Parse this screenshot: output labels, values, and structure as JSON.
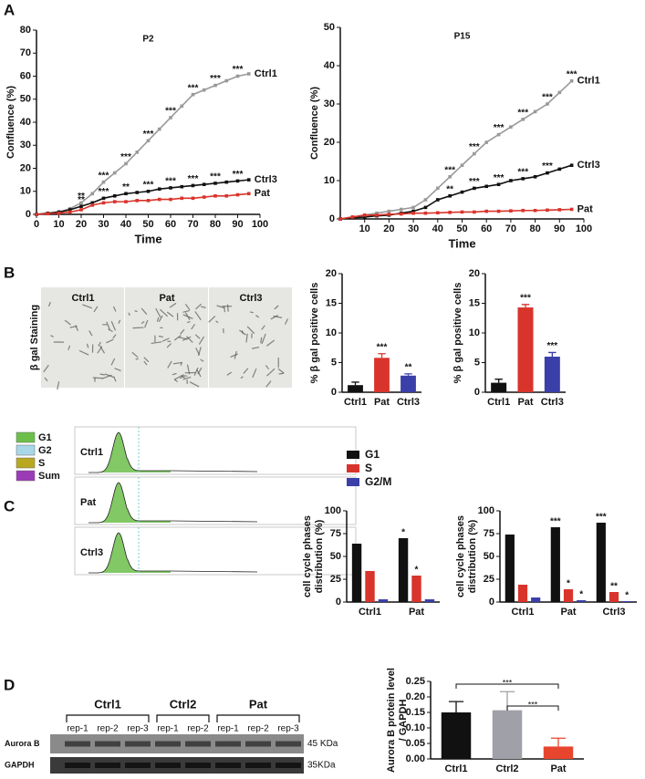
{
  "panels": [
    "A",
    "B",
    "C",
    "D"
  ],
  "staining": {
    "side_label": "β gal Staining",
    "labels": [
      "Ctrl1",
      "Pat",
      "Ctrl3"
    ]
  },
  "flow": {
    "legend": [
      {
        "label": "G1",
        "color": "#6cc04a"
      },
      {
        "label": "G2",
        "color": "#a8d8e8"
      },
      {
        "label": "S",
        "color": "#b8a820"
      },
      {
        "label": "Sum",
        "color": "#9b3bb5"
      }
    ],
    "samples": [
      "Ctrl1",
      "Pat",
      "Ctrl3"
    ]
  },
  "blot": {
    "groups": [
      {
        "name": "Ctrl1",
        "lanes": [
          "rep-1",
          "rep-2",
          "rep-3"
        ]
      },
      {
        "name": "Ctrl2",
        "lanes": [
          "rep-1",
          "rep-2"
        ]
      },
      {
        "name": "Pat",
        "lanes": [
          "rep-1",
          "rep-2",
          "rep-3"
        ]
      }
    ],
    "rows": [
      "Aurora B",
      "GAPDH"
    ],
    "sizes": [
      "45 KDa",
      "35KDa"
    ]
  },
  "chart_data": [
    {
      "type": "line",
      "title": "P2",
      "xlabel": "Time",
      "ylabel": "Confluence (%)",
      "xlim": [
        0,
        100
      ],
      "ylim": [
        0,
        80
      ],
      "xticks": [
        0,
        10,
        20,
        30,
        40,
        50,
        60,
        70,
        80,
        90,
        100
      ],
      "yticks": [
        0,
        10,
        20,
        30,
        40,
        50,
        60,
        70,
        80
      ],
      "x": [
        0,
        5,
        10,
        15,
        20,
        25,
        30,
        35,
        40,
        45,
        50,
        55,
        60,
        65,
        70,
        75,
        80,
        85,
        90,
        95
      ],
      "series": [
        {
          "name": "Ctrl1",
          "color": "#999999",
          "values": [
            0,
            0.5,
            1,
            2.5,
            5,
            9,
            14,
            18,
            22,
            27,
            32,
            37,
            42,
            47,
            52,
            54,
            56,
            58,
            60,
            61
          ],
          "significance": [
            null,
            null,
            null,
            null,
            "**",
            null,
            "***",
            null,
            "***",
            null,
            "***",
            null,
            "***",
            null,
            "***",
            null,
            "***",
            null,
            "***",
            null
          ]
        },
        {
          "name": "Ctrl3",
          "color": "#111111",
          "values": [
            0,
            0.5,
            1,
            2,
            3.5,
            5,
            7,
            8,
            9,
            9.5,
            10,
            11,
            11.5,
            12,
            12.5,
            13,
            13.5,
            14,
            14.5,
            15
          ],
          "significance": [
            null,
            null,
            null,
            null,
            "**",
            null,
            "***",
            null,
            "**",
            null,
            "***",
            null,
            "***",
            null,
            "***",
            null,
            "***",
            null,
            "***",
            null
          ]
        },
        {
          "name": "Pat",
          "color": "#d9342b",
          "values": [
            0,
            0.3,
            0.5,
            1,
            2,
            4,
            5,
            5.5,
            5.5,
            6,
            6,
            6.5,
            6.5,
            7,
            7,
            7.5,
            8,
            8,
            8.5,
            9
          ]
        }
      ]
    },
    {
      "type": "line",
      "title": "P15",
      "xlabel": "Time",
      "ylabel": "Confluence (%)",
      "xlim": [
        0,
        100
      ],
      "ylim": [
        0,
        50
      ],
      "xticks": [
        10,
        20,
        30,
        40,
        50,
        60,
        70,
        80,
        90,
        100
      ],
      "yticks": [
        0,
        10,
        20,
        30,
        40,
        50
      ],
      "x": [
        0,
        5,
        10,
        15,
        20,
        25,
        30,
        35,
        40,
        45,
        50,
        55,
        60,
        65,
        70,
        75,
        80,
        85,
        90,
        95
      ],
      "series": [
        {
          "name": "Ctrl1",
          "color": "#999999",
          "values": [
            0,
            0.5,
            1,
            1.5,
            2,
            2.5,
            3,
            5,
            8,
            11,
            14,
            17,
            20,
            22,
            24,
            26,
            28,
            30,
            33,
            36
          ],
          "significance": [
            null,
            null,
            null,
            null,
            null,
            null,
            null,
            null,
            null,
            "***",
            null,
            "***",
            null,
            "***",
            null,
            "***",
            null,
            "***",
            null,
            "***"
          ]
        },
        {
          "name": "Ctrl3",
          "color": "#111111",
          "values": [
            0,
            0.3,
            0.5,
            0.8,
            1,
            1.5,
            2,
            3,
            5,
            6,
            7,
            8,
            8.5,
            9,
            10,
            10.5,
            11,
            12,
            13,
            14
          ],
          "significance": [
            null,
            null,
            null,
            null,
            null,
            null,
            null,
            null,
            null,
            "**",
            null,
            "***",
            null,
            "***",
            null,
            "***",
            null,
            "***",
            null,
            null
          ]
        },
        {
          "name": "Pat",
          "color": "#d9342b",
          "values": [
            0,
            0.5,
            1,
            1,
            1.2,
            1.3,
            1.5,
            1.5,
            1.6,
            1.7,
            1.8,
            1.8,
            2,
            2,
            2.1,
            2.2,
            2.2,
            2.3,
            2.4,
            2.5
          ]
        }
      ]
    },
    {
      "type": "bar",
      "ylabel": "% β gal positive cells",
      "ylim": [
        0,
        20
      ],
      "yticks": [
        0,
        5,
        10,
        15,
        20
      ],
      "categories": [
        "Ctrl1",
        "Pat",
        "Ctrl3"
      ],
      "values": [
        1.2,
        5.8,
        2.8
      ],
      "errors": [
        0.5,
        0.7,
        0.3
      ],
      "colors": [
        "#111111",
        "#d9342b",
        "#3b3fa8"
      ],
      "significance": [
        null,
        "***",
        "**"
      ]
    },
    {
      "type": "bar",
      "ylabel": "% β gal positive cells",
      "ylim": [
        0,
        20
      ],
      "yticks": [
        0,
        5,
        10,
        15,
        20
      ],
      "categories": [
        "Ctrl1",
        "Pat",
        "Ctrl3"
      ],
      "values": [
        1.6,
        14.3,
        6.0
      ],
      "errors": [
        0.6,
        0.5,
        0.7
      ],
      "colors": [
        "#111111",
        "#d9342b",
        "#3b3fa8"
      ],
      "significance": [
        null,
        "***",
        "***"
      ]
    },
    {
      "type": "grouped_bar",
      "ylabel": [
        "cell cycle phases",
        "distribution (%)"
      ],
      "ylim": [
        0,
        100
      ],
      "yticks": [
        0,
        25,
        50,
        75,
        100
      ],
      "legend": true,
      "categories": [
        "Ctrl1",
        "Pat"
      ],
      "series": [
        {
          "name": "G1",
          "color": "#111111",
          "values": [
            64,
            70
          ],
          "significance": [
            null,
            "*"
          ]
        },
        {
          "name": "S",
          "color": "#d9342b",
          "values": [
            34,
            29
          ],
          "significance": [
            null,
            "*"
          ]
        },
        {
          "name": "G2/M",
          "color": "#3b3fa8",
          "values": [
            3,
            3
          ]
        }
      ]
    },
    {
      "type": "grouped_bar",
      "ylabel": [
        "cell cycle phases",
        "distribution (%)"
      ],
      "ylim": [
        0,
        100
      ],
      "yticks": [
        0,
        25,
        50,
        75,
        100
      ],
      "legend": false,
      "categories": [
        "Ctrl1",
        "Pat",
        "Ctrl3"
      ],
      "series": [
        {
          "name": "G1",
          "color": "#111111",
          "values": [
            74,
            82,
            87
          ],
          "significance": [
            null,
            "***",
            "***"
          ]
        },
        {
          "name": "S",
          "color": "#d9342b",
          "values": [
            19,
            14,
            11
          ],
          "significance": [
            null,
            "*",
            "**"
          ]
        },
        {
          "name": "G2/M",
          "color": "#3b3fa8",
          "values": [
            5,
            2,
            1
          ],
          "significance": [
            null,
            "*",
            "*"
          ]
        }
      ]
    },
    {
      "type": "bar",
      "ylabel": [
        "Aurora B protein level",
        "/ GAPDH"
      ],
      "ylim": [
        0,
        0.25
      ],
      "yticks": [
        {
          "value": 0,
          "label": "0.00"
        },
        {
          "value": 0.05,
          "label": "0.05"
        },
        {
          "value": 0.1,
          "label": "0.10"
        },
        {
          "value": 0.15,
          "label": "0.15"
        },
        {
          "value": 0.2,
          "label": "0.20"
        },
        {
          "value": 0.25,
          "label": "0.25"
        }
      ],
      "categories": [
        "Ctrl1",
        "Ctrl2",
        "Pat"
      ],
      "values": [
        0.15,
        0.157,
        0.04
      ],
      "errors": [
        0.035,
        0.06,
        0.027
      ],
      "colors": [
        "#111111",
        "#a0a0a8",
        "#e8452f"
      ],
      "comparisons": [
        {
          "groups": [
            "Ctrl1",
            "Pat"
          ],
          "label": "***"
        },
        {
          "groups": [
            "Ctrl2",
            "Pat"
          ],
          "label": "***"
        }
      ]
    }
  ]
}
